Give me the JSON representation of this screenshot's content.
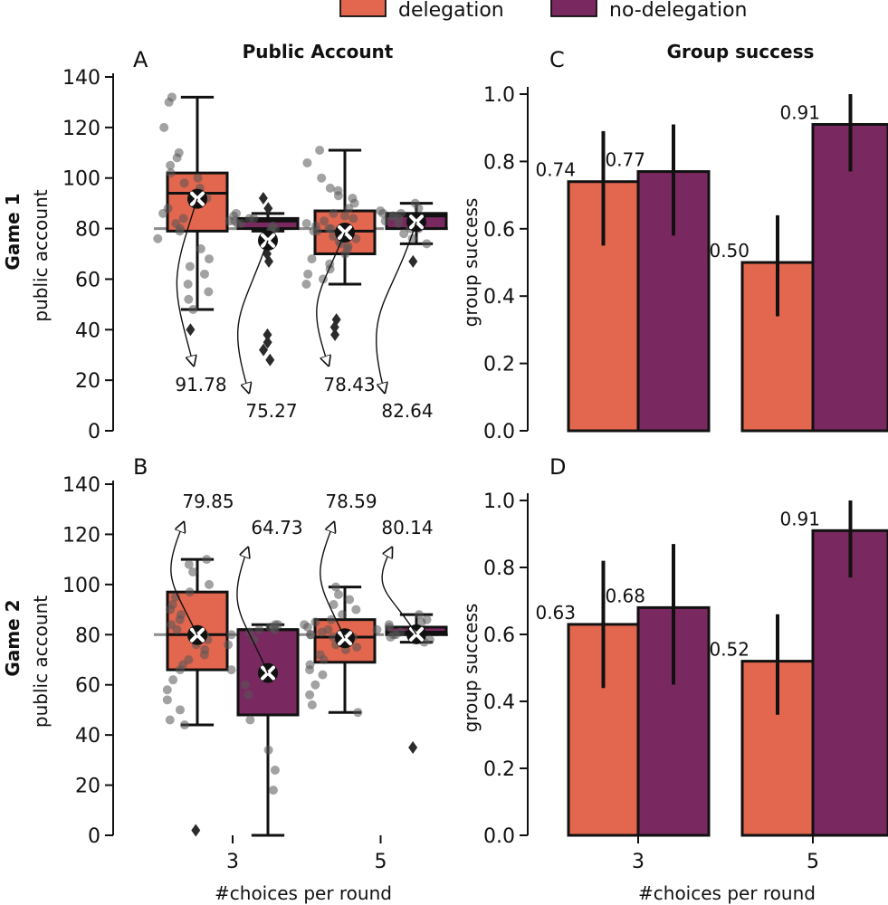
{
  "legend": {
    "entries": [
      {
        "label": "delegation",
        "color": "#e3664f"
      },
      {
        "label": "no-delegation",
        "color": "#7a2860"
      }
    ],
    "placement": "top-center"
  },
  "column_titles": {
    "left": "Public Account",
    "right": "Group success"
  },
  "row_labels": {
    "game1": "Game 1",
    "game2": "Game 2"
  },
  "shared": {
    "xlabel": "#choices per round",
    "categories": [
      "3",
      "5"
    ]
  },
  "chart_data": [
    {
      "panel": "A",
      "type": "box",
      "row_label": "Game 1",
      "ylabel": "public account",
      "ylim": [
        0,
        140
      ],
      "yticks": [
        0,
        20,
        40,
        60,
        80,
        100,
        120,
        140
      ],
      "reference_line": 80,
      "categories": [
        "3",
        "5"
      ],
      "series": [
        {
          "name": "delegation",
          "color": "#e3664f",
          "boxes": [
            {
              "category": "3",
              "whisker_low": 48,
              "q1": 79,
              "median": 94,
              "q3": 102,
              "whisker_high": 132,
              "mean": 91.78,
              "mean_label": "91.78",
              "outliers": [
                40
              ],
              "points": [
                132,
                130,
                120,
                110,
                108,
                105,
                102,
                100,
                98,
                96,
                94,
                93,
                92,
                90,
                88,
                86,
                84,
                82,
                80,
                79,
                76,
                72,
                68,
                65,
                62,
                58,
                55,
                52,
                48
              ]
            },
            {
              "category": "5",
              "whisker_low": 58,
              "q1": 70,
              "median": 79,
              "q3": 87,
              "whisker_high": 111,
              "mean": 78.43,
              "mean_label": "78.43",
              "outliers": [
                44,
                41,
                38
              ],
              "points": [
                111,
                106,
                100,
                96,
                95,
                93,
                92,
                90,
                88,
                86,
                85,
                84,
                83,
                82,
                81,
                80,
                80,
                79,
                79,
                78,
                77,
                76,
                75,
                74,
                73,
                72,
                70,
                68,
                66,
                64,
                62,
                60,
                58
              ]
            }
          ]
        },
        {
          "name": "no-delegation",
          "color": "#7a2860",
          "boxes": [
            {
              "category": "3",
              "whisker_low": 79,
              "q1": 80,
              "median": 83,
              "q3": 84,
              "whisker_high": 86,
              "mean": 75.27,
              "mean_label": "75.27",
              "outliers": [
                92,
                88,
                70,
                67,
                38,
                35,
                32,
                28
              ],
              "points": [
                86,
                85,
                84,
                84,
                83,
                83,
                82,
                82,
                81,
                80,
                80,
                79
              ]
            },
            {
              "category": "5",
              "whisker_low": 74,
              "q1": 80,
              "median": 85,
              "q3": 86,
              "whisker_high": 90,
              "mean": 82.64,
              "mean_label": "82.64",
              "outliers": [
                67
              ],
              "points": [
                90,
                88,
                87,
                86,
                86,
                85,
                85,
                84,
                83,
                82,
                81,
                80,
                80,
                78,
                76,
                74
              ]
            }
          ]
        }
      ]
    },
    {
      "panel": "B",
      "type": "box",
      "row_label": "Game 2",
      "ylabel": "public account",
      "xlabel": "#choices per round",
      "ylim": [
        0,
        140
      ],
      "yticks": [
        0,
        20,
        40,
        60,
        80,
        100,
        120,
        140
      ],
      "reference_line": 80,
      "categories": [
        "3",
        "5"
      ],
      "series": [
        {
          "name": "delegation",
          "color": "#e3664f",
          "boxes": [
            {
              "category": "3",
              "whisker_low": 44,
              "q1": 66,
              "median": 80,
              "q3": 97,
              "whisker_high": 110,
              "mean": 79.85,
              "mean_label": "79.85",
              "outliers": [
                2
              ],
              "points": [
                110,
                108,
                105,
                100,
                97,
                95,
                92,
                90,
                88,
                86,
                84,
                82,
                80,
                80,
                79,
                78,
                76,
                74,
                72,
                70,
                68,
                66,
                62,
                58,
                54,
                50,
                46,
                44
              ]
            },
            {
              "category": "5",
              "whisker_low": 49,
              "q1": 69,
              "median": 79,
              "q3": 86,
              "whisker_high": 99,
              "mean": 78.59,
              "mean_label": "78.59",
              "outliers": [],
              "points": [
                99,
                96,
                94,
                92,
                90,
                88,
                86,
                85,
                84,
                83,
                82,
                81,
                80,
                80,
                79,
                79,
                78,
                77,
                76,
                75,
                74,
                72,
                70,
                68,
                66,
                64,
                60,
                56,
                52,
                49
              ]
            }
          ]
        },
        {
          "name": "no-delegation",
          "color": "#7a2860",
          "boxes": [
            {
              "category": "3",
              "whisker_low": 0,
              "q1": 48,
              "median": 82,
              "q3": 82,
              "whisker_high": 84,
              "mean": 64.73,
              "mean_label": "64.73",
              "outliers": [],
              "points": [
                84,
                84,
                83,
                83,
                82,
                82,
                81,
                80,
                78,
                76,
                66,
                60,
                56,
                46,
                34,
                26,
                18
              ]
            },
            {
              "category": "5",
              "whisker_low": 77,
              "q1": 80,
              "median": 81,
              "q3": 83,
              "whisker_high": 88,
              "mean": 80.14,
              "mean_label": "80.14",
              "outliers": [
                35
              ],
              "points": [
                88,
                86,
                85,
                84,
                83,
                82,
                81,
                80,
                80,
                79,
                78,
                77
              ]
            }
          ]
        }
      ]
    },
    {
      "panel": "C",
      "type": "bar",
      "title": "Group success",
      "ylabel": "group success",
      "ylim": [
        0,
        1.0
      ],
      "yticks": [
        0.0,
        0.2,
        0.4,
        0.6,
        0.8,
        1.0
      ],
      "categories": [
        "3",
        "5"
      ],
      "series": [
        {
          "name": "delegation",
          "color": "#e3664f",
          "values": [
            0.74,
            0.5
          ],
          "labels": [
            "0.74",
            "0.50"
          ],
          "ci": [
            [
              0.55,
              0.89
            ],
            [
              0.34,
              0.64
            ]
          ]
        },
        {
          "name": "no-delegation",
          "color": "#7a2860",
          "values": [
            0.77,
            0.91
          ],
          "labels": [
            "0.77",
            "0.91"
          ],
          "ci": [
            [
              0.58,
              0.91
            ],
            [
              0.77,
              1.0
            ]
          ]
        }
      ]
    },
    {
      "panel": "D",
      "type": "bar",
      "ylabel": "group success",
      "xlabel": "#choices per round",
      "ylim": [
        0,
        1.0
      ],
      "yticks": [
        0.0,
        0.2,
        0.4,
        0.6,
        0.8,
        1.0
      ],
      "categories": [
        "3",
        "5"
      ],
      "series": [
        {
          "name": "delegation",
          "color": "#e3664f",
          "values": [
            0.63,
            0.52
          ],
          "labels": [
            "0.63",
            "0.52"
          ],
          "ci": [
            [
              0.44,
              0.82
            ],
            [
              0.36,
              0.66
            ]
          ]
        },
        {
          "name": "no-delegation",
          "color": "#7a2860",
          "values": [
            0.68,
            0.91
          ],
          "labels": [
            "0.68",
            "0.91"
          ],
          "ci": [
            [
              0.45,
              0.87
            ],
            [
              0.77,
              1.0
            ]
          ]
        }
      ]
    }
  ]
}
